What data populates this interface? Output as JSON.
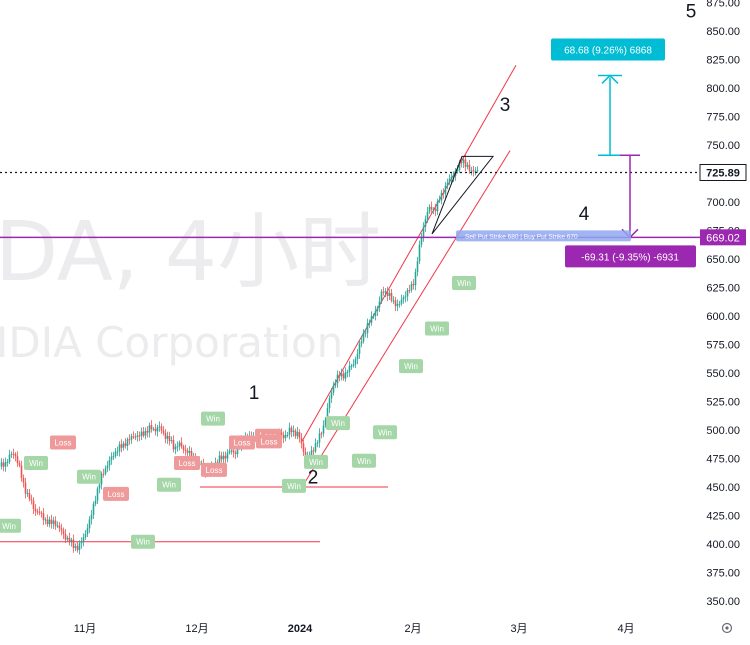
{
  "watermark": {
    "symbol": "DA, 4小时",
    "company": "IDIA Corporation"
  },
  "chart_data": {
    "type": "candlestick",
    "y_axis": {
      "ticks": [
        875,
        850,
        825,
        800,
        775,
        750,
        725,
        700,
        675,
        650,
        625,
        600,
        575,
        550,
        525,
        500,
        475,
        450,
        425,
        400,
        375,
        350
      ],
      "range": [
        338,
        880
      ],
      "side": "right",
      "current_price_label": "725.89",
      "current_price": 725.89,
      "highlight_label": "669.02",
      "highlight_price": 669.02
    },
    "x_axis": {
      "labels": [
        "11月",
        "12月",
        "2024",
        "2月",
        "3月",
        "4月"
      ],
      "bold_label": "2024"
    },
    "price_path": [
      [
        0,
        468
      ],
      [
        6,
        472
      ],
      [
        10,
        478
      ],
      [
        14,
        480
      ],
      [
        18,
        470
      ],
      [
        22,
        455
      ],
      [
        26,
        445
      ],
      [
        30,
        438
      ],
      [
        34,
        430
      ],
      [
        38,
        428
      ],
      [
        42,
        424
      ],
      [
        46,
        420
      ],
      [
        50,
        418
      ],
      [
        54,
        420
      ],
      [
        58,
        414
      ],
      [
        62,
        410
      ],
      [
        66,
        405
      ],
      [
        70,
        402
      ],
      [
        74,
        398
      ],
      [
        78,
        396
      ],
      [
        82,
        404
      ],
      [
        86,
        412
      ],
      [
        90,
        422
      ],
      [
        94,
        438
      ],
      [
        98,
        450
      ],
      [
        102,
        462
      ],
      [
        106,
        468
      ],
      [
        110,
        474
      ],
      [
        114,
        480
      ],
      [
        118,
        484
      ],
      [
        122,
        486
      ],
      [
        126,
        490
      ],
      [
        130,
        492
      ],
      [
        134,
        496
      ],
      [
        138,
        494
      ],
      [
        142,
        497
      ],
      [
        146,
        499
      ],
      [
        150,
        502
      ],
      [
        154,
        500
      ],
      [
        158,
        503
      ],
      [
        162,
        498
      ],
      [
        166,
        494
      ],
      [
        170,
        490
      ],
      [
        174,
        484
      ],
      [
        178,
        488
      ],
      [
        182,
        484
      ],
      [
        186,
        482
      ],
      [
        190,
        478
      ],
      [
        194,
        474
      ],
      [
        198,
        470
      ],
      [
        202,
        468
      ],
      [
        206,
        462
      ],
      [
        210,
        465
      ],
      [
        214,
        470
      ],
      [
        218,
        474
      ],
      [
        222,
        476
      ],
      [
        226,
        478
      ],
      [
        230,
        482
      ],
      [
        234,
        480
      ],
      [
        238,
        484
      ],
      [
        242,
        490
      ],
      [
        246,
        494
      ],
      [
        250,
        492
      ],
      [
        254,
        496
      ],
      [
        258,
        494
      ],
      [
        262,
        490
      ],
      [
        266,
        492
      ],
      [
        270,
        492
      ],
      [
        274,
        496
      ],
      [
        278,
        497
      ],
      [
        282,
        494
      ],
      [
        286,
        496
      ],
      [
        290,
        500
      ],
      [
        294,
        498
      ],
      [
        298,
        496
      ],
      [
        302,
        484
      ],
      [
        306,
        476
      ],
      [
        310,
        478
      ],
      [
        314,
        486
      ],
      [
        318,
        492
      ],
      [
        322,
        500
      ],
      [
        326,
        515
      ],
      [
        330,
        530
      ],
      [
        334,
        542
      ],
      [
        338,
        548
      ],
      [
        342,
        547
      ],
      [
        346,
        551
      ],
      [
        350,
        555
      ],
      [
        354,
        560
      ],
      [
        358,
        570
      ],
      [
        362,
        582
      ],
      [
        366,
        590
      ],
      [
        370,
        596
      ],
      [
        374,
        604
      ],
      [
        378,
        608
      ],
      [
        382,
        624
      ],
      [
        386,
        620
      ],
      [
        390,
        616
      ],
      [
        394,
        612
      ],
      [
        398,
        608
      ],
      [
        402,
        616
      ],
      [
        406,
        620
      ],
      [
        410,
        624
      ],
      [
        414,
        632
      ],
      [
        418,
        655
      ],
      [
        422,
        675
      ],
      [
        426,
        690
      ],
      [
        430,
        695
      ],
      [
        434,
        693
      ],
      [
        438,
        700
      ],
      [
        442,
        708
      ],
      [
        446,
        716
      ],
      [
        450,
        720
      ],
      [
        454,
        726
      ],
      [
        458,
        730
      ],
      [
        462,
        738
      ],
      [
        466,
        732
      ],
      [
        470,
        726
      ],
      [
        474,
        729
      ],
      [
        478,
        725.89
      ]
    ],
    "signal_tags": [
      {
        "label": "Win",
        "x": 36,
        "price": 471
      },
      {
        "label": "Loss",
        "x": 63,
        "price": 489
      },
      {
        "label": "Win",
        "x": 89,
        "price": 459
      },
      {
        "label": "Loss",
        "x": 116,
        "price": 444
      },
      {
        "label": "Win",
        "x": 9,
        "price": 416
      },
      {
        "label": "Win",
        "x": 143,
        "price": 402
      },
      {
        "label": "Win",
        "x": 169,
        "price": 452
      },
      {
        "label": "Win",
        "x": 213,
        "price": 510
      },
      {
        "label": "Loss",
        "x": 187,
        "price": 471
      },
      {
        "label": "Loss",
        "x": 214,
        "price": 465
      },
      {
        "label": "Loss",
        "x": 242,
        "price": 489
      },
      {
        "label": "Loss",
        "x": 268,
        "price": 495
      },
      {
        "label": "Loss",
        "x": 269,
        "price": 490
      },
      {
        "label": "Win",
        "x": 294,
        "price": 451
      },
      {
        "label": "Win",
        "x": 316,
        "price": 472
      },
      {
        "label": "Win",
        "x": 338,
        "price": 506
      },
      {
        "label": "Win",
        "x": 364,
        "price": 473
      },
      {
        "label": "Win",
        "x": 385,
        "price": 498
      },
      {
        "label": "Win",
        "x": 411,
        "price": 556
      },
      {
        "label": "Win",
        "x": 437,
        "price": 589
      },
      {
        "label": "Win",
        "x": 464,
        "price": 629
      }
    ],
    "wave_labels": [
      {
        "label": "1",
        "x": 254,
        "price": 527
      },
      {
        "label": "2",
        "x": 313,
        "price": 453
      },
      {
        "label": "3",
        "x": 505,
        "price": 780
      },
      {
        "label": "4",
        "x": 584,
        "price": 684
      },
      {
        "label": "5",
        "x": 691,
        "price": 862
      }
    ],
    "support_lines": [
      {
        "x_start": 0,
        "x_end": 320,
        "price": 402
      },
      {
        "x_start": 200,
        "x_end": 388,
        "price": 450
      }
    ],
    "channel_lines": [
      {
        "x1": 302,
        "p1": 490,
        "x2": 516,
        "p2": 820
      },
      {
        "x1": 302,
        "p1": 450,
        "x2": 510,
        "p2": 745
      }
    ],
    "triangle": {
      "points": [
        [
          432,
          672
        ],
        [
          462,
          740
        ],
        [
          493,
          740
        ]
      ]
    },
    "position_tool": {
      "text": "Sell Put Strike 680 | Buy Put Strike 670",
      "x": 460,
      "price": 669
    },
    "measure_up": {
      "label": "68.68 (9.26%) 6868",
      "from": 741,
      "to": 811
    },
    "measure_down": {
      "label": "-69.31 (-9.35%) -6931",
      "from": 741,
      "to": 669
    },
    "colors": {
      "up": "#26a69a",
      "down": "#ef5350",
      "channel": "#f23645",
      "purple": "#9c27b0",
      "cyan": "#00bcd4",
      "win": "#a5d6a7",
      "loss": "#ef9a9a"
    }
  }
}
